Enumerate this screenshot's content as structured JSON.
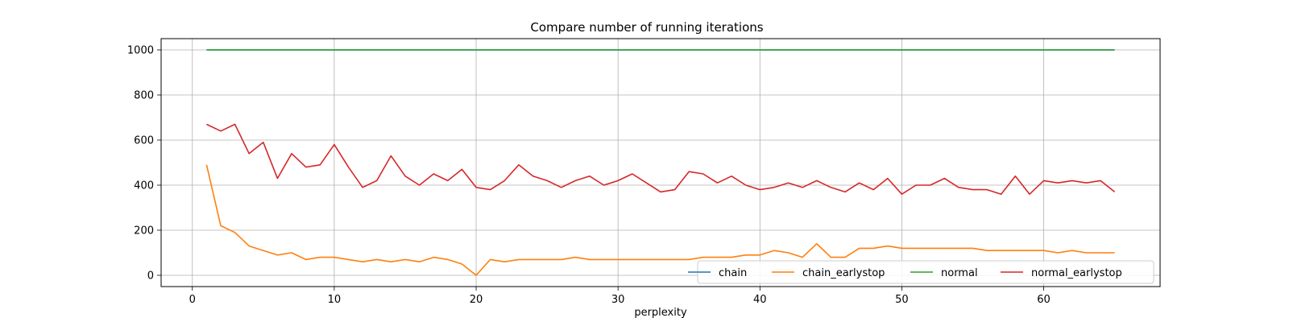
{
  "chart_data": {
    "type": "line",
    "title": "Compare number of running iterations",
    "xlabel": "perplexity",
    "ylabel": "",
    "xlim": [
      -2.2,
      68.2
    ],
    "ylim": [
      -50,
      1050
    ],
    "xticks": [
      0,
      10,
      20,
      30,
      40,
      50,
      60
    ],
    "yticks": [
      0,
      200,
      400,
      600,
      800,
      1000
    ],
    "grid": true,
    "legend_position": "lower-right",
    "x": [
      1,
      2,
      3,
      4,
      5,
      6,
      7,
      8,
      9,
      10,
      11,
      12,
      13,
      14,
      15,
      16,
      17,
      18,
      19,
      20,
      21,
      22,
      23,
      24,
      25,
      26,
      27,
      28,
      29,
      30,
      31,
      32,
      33,
      34,
      35,
      36,
      37,
      38,
      39,
      40,
      41,
      42,
      43,
      44,
      45,
      46,
      47,
      48,
      49,
      50,
      51,
      52,
      53,
      54,
      55,
      56,
      57,
      58,
      59,
      60,
      61,
      62,
      63,
      64,
      65
    ],
    "series": [
      {
        "name": "chain",
        "color": "#1f77b4",
        "values": [
          1000,
          1000,
          1000,
          1000,
          1000,
          1000,
          1000,
          1000,
          1000,
          1000,
          1000,
          1000,
          1000,
          1000,
          1000,
          1000,
          1000,
          1000,
          1000,
          1000,
          1000,
          1000,
          1000,
          1000,
          1000,
          1000,
          1000,
          1000,
          1000,
          1000,
          1000,
          1000,
          1000,
          1000,
          1000,
          1000,
          1000,
          1000,
          1000,
          1000,
          1000,
          1000,
          1000,
          1000,
          1000,
          1000,
          1000,
          1000,
          1000,
          1000,
          1000,
          1000,
          1000,
          1000,
          1000,
          1000,
          1000,
          1000,
          1000,
          1000,
          1000,
          1000,
          1000,
          1000,
          1000
        ]
      },
      {
        "name": "chain_earlystop",
        "color": "#ff7f0e",
        "values": [
          490,
          220,
          190,
          130,
          110,
          90,
          100,
          70,
          80,
          80,
          70,
          60,
          70,
          60,
          70,
          60,
          80,
          70,
          50,
          0,
          70,
          60,
          70,
          70,
          70,
          70,
          80,
          70,
          70,
          70,
          70,
          70,
          70,
          70,
          70,
          80,
          80,
          80,
          90,
          90,
          110,
          100,
          80,
          140,
          80,
          80,
          120,
          120,
          130,
          120,
          120,
          120,
          120,
          120,
          120,
          110,
          110,
          110,
          110,
          110,
          100,
          110,
          100,
          100,
          100
        ]
      },
      {
        "name": "normal",
        "color": "#2ca02c",
        "values": [
          1000,
          1000,
          1000,
          1000,
          1000,
          1000,
          1000,
          1000,
          1000,
          1000,
          1000,
          1000,
          1000,
          1000,
          1000,
          1000,
          1000,
          1000,
          1000,
          1000,
          1000,
          1000,
          1000,
          1000,
          1000,
          1000,
          1000,
          1000,
          1000,
          1000,
          1000,
          1000,
          1000,
          1000,
          1000,
          1000,
          1000,
          1000,
          1000,
          1000,
          1000,
          1000,
          1000,
          1000,
          1000,
          1000,
          1000,
          1000,
          1000,
          1000,
          1000,
          1000,
          1000,
          1000,
          1000,
          1000,
          1000,
          1000,
          1000,
          1000,
          1000,
          1000,
          1000,
          1000,
          1000
        ]
      },
      {
        "name": "normal_earlystop",
        "color": "#d62728",
        "values": [
          670,
          640,
          670,
          540,
          590,
          430,
          540,
          480,
          490,
          580,
          480,
          390,
          420,
          530,
          440,
          400,
          450,
          420,
          470,
          390,
          380,
          420,
          490,
          440,
          420,
          390,
          420,
          440,
          400,
          420,
          450,
          410,
          370,
          380,
          460,
          450,
          410,
          440,
          400,
          380,
          390,
          410,
          390,
          420,
          390,
          370,
          410,
          380,
          430,
          360,
          400,
          400,
          430,
          390,
          380,
          380,
          360,
          440,
          360,
          420,
          410,
          420,
          410,
          420,
          370
        ]
      }
    ]
  }
}
